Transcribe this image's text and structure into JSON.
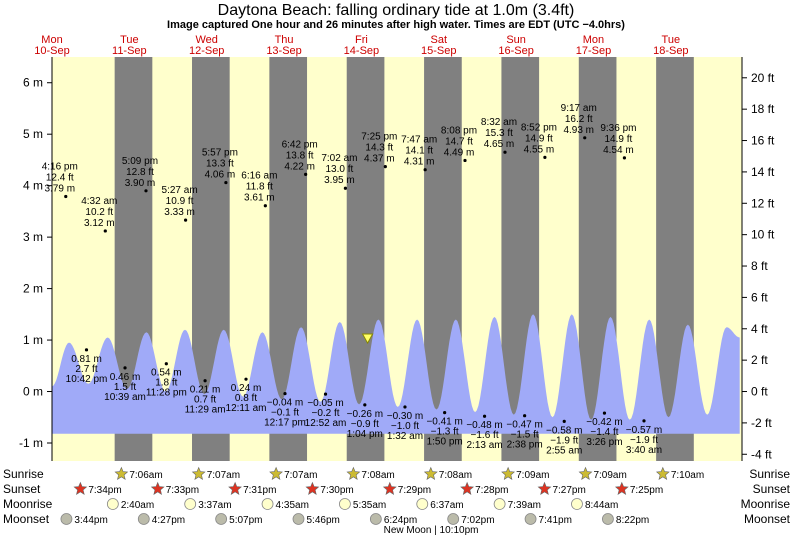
{
  "title": "Daytona Beach: falling  ordinary tide at 1.0m (3.4ft)",
  "subtitle": "Image captured One hour and 26 minutes after high water. Times are EDT (UTC −4.0hrs)",
  "colors": {
    "day": "#ffffcc",
    "night": "#808080",
    "tide_fill": "#a0aaf8",
    "day_label": "#cc0000",
    "now_marker": "#ffff66"
  },
  "day_headers": [
    {
      "dow": "Mon",
      "date": "10-Sep"
    },
    {
      "dow": "Tue",
      "date": "11-Sep"
    },
    {
      "dow": "Wed",
      "date": "12-Sep"
    },
    {
      "dow": "Thu",
      "date": "13-Sep"
    },
    {
      "dow": "Fri",
      "date": "14-Sep"
    },
    {
      "dow": "Sat",
      "date": "15-Sep"
    },
    {
      "dow": "Sun",
      "date": "16-Sep"
    },
    {
      "dow": "Mon",
      "date": "17-Sep"
    },
    {
      "dow": "Tue",
      "date": "18-Sep"
    }
  ],
  "chart_data": {
    "type": "area",
    "title": "Daytona Beach: falling  ordinary tide at 1.0m (3.4ft)",
    "y_left_unit": "m",
    "y_left_ticks": [
      "-1 m",
      "0 m",
      "1 m",
      "2 m",
      "3 m",
      "4 m",
      "5 m",
      "6 m"
    ],
    "y_left_range": [
      -1.35,
      6.5
    ],
    "y_right_unit": "ft",
    "y_right_ticks": [
      "-4 ft",
      "-2 ft",
      "0 ft",
      "2 ft",
      "4 ft",
      "6 ft",
      "8 ft",
      "10 ft",
      "12 ft",
      "14 ft",
      "16 ft",
      "18 ft",
      "20 ft"
    ],
    "x_range_days": [
      10.0,
      18.92
    ],
    "grid": false,
    "now": {
      "day": 14.08,
      "height_m": 1.0
    },
    "extrema": [
      {
        "type": "high",
        "day": 10.178,
        "time": "4:16 pm",
        "ft": "12.4 ft",
        "m": "3.79 m",
        "value": 3.79
      },
      {
        "type": "low",
        "day": 10.446,
        "time": "10:42 pm",
        "ft": "2.7 ft",
        "m": "0.81 m",
        "value": 0.81
      },
      {
        "type": "high",
        "day": 10.689,
        "time": "4:32 am",
        "ft": "10.2 ft",
        "m": "3.12 m",
        "value": 3.12
      },
      {
        "type": "low",
        "day": 10.944,
        "time": "10:39 am",
        "ft": "1.5 ft",
        "m": "0.46 m",
        "value": 0.46
      },
      {
        "type": "high",
        "day": 11.215,
        "time": "5:09 pm",
        "ft": "12.8 ft",
        "m": "3.90 m",
        "value": 3.9
      },
      {
        "type": "low",
        "day": 11.478,
        "time": "11:28 pm",
        "ft": "1.8 ft",
        "m": "0.54 m",
        "value": 0.54
      },
      {
        "type": "high",
        "day": 11.727,
        "time": "5:27 am",
        "ft": "10.9 ft",
        "m": "3.33 m",
        "value": 3.33
      },
      {
        "type": "low",
        "day": 11.979,
        "time": "11:29 am",
        "ft": "0.7 ft",
        "m": "0.21 m",
        "value": 0.21
      },
      {
        "type": "high",
        "day": 12.248,
        "time": "5:57 pm",
        "ft": "13.3 ft",
        "m": "4.06 m",
        "value": 4.06
      },
      {
        "type": "low",
        "day": 12.508,
        "time": "12:11 am",
        "ft": "0.8 ft",
        "m": "0.24 m",
        "value": 0.24
      },
      {
        "type": "high",
        "day": 12.758,
        "time": "6:16 am",
        "ft": "11.8 ft",
        "m": "3.61 m",
        "value": 3.61
      },
      {
        "type": "low",
        "day": 13.012,
        "time": "12:17 pm",
        "ft": "−0.1 ft",
        "m": "−0.04 m",
        "value": -0.04
      },
      {
        "type": "high",
        "day": 13.279,
        "time": "6:42 pm",
        "ft": "13.8 ft",
        "m": "4.22 m",
        "value": 4.22
      },
      {
        "type": "low",
        "day": 13.536,
        "time": "12:52 am",
        "ft": "−0.2 ft",
        "m": "−0.05 m",
        "value": -0.05
      },
      {
        "type": "high",
        "day": 13.793,
        "time": "7:02 am",
        "ft": "13.0 ft",
        "m": "3.95 m",
        "value": 3.95
      },
      {
        "type": "low",
        "day": 14.044,
        "time": "1:04 pm",
        "ft": "−0.9 ft",
        "m": "−0.26 m",
        "value": -0.26
      },
      {
        "type": "high",
        "day": 14.309,
        "time": "7:25 pm",
        "ft": "14.3 ft",
        "m": "4.37 m",
        "value": 4.37
      },
      {
        "type": "low",
        "day": 14.563,
        "time": "1:32 am",
        "ft": "−1.0 ft",
        "m": "−0.30 m",
        "value": -0.3
      },
      {
        "type": "high",
        "day": 14.824,
        "time": "7:47 am",
        "ft": "14.1 ft",
        "m": "4.31 m",
        "value": 4.31
      },
      {
        "type": "low",
        "day": 15.076,
        "time": "1:50 pm",
        "ft": "−1.3 ft",
        "m": "−0.41 m",
        "value": -0.41
      },
      {
        "type": "high",
        "day": 15.339,
        "time": "8:08 pm",
        "ft": "14.7 ft",
        "m": "4.49 m",
        "value": 4.49
      },
      {
        "type": "low",
        "day": 15.592,
        "time": "2:13 am",
        "ft": "−1.6 ft",
        "m": "−0.48 m",
        "value": -0.48
      },
      {
        "type": "high",
        "day": 15.856,
        "time": "8:32 am",
        "ft": "15.3 ft",
        "m": "4.65 m",
        "value": 4.65
      },
      {
        "type": "low",
        "day": 16.11,
        "time": "2:38 pm",
        "ft": "−1.5 ft",
        "m": "−0.47 m",
        "value": -0.47
      },
      {
        "type": "high",
        "day": 16.372,
        "time": "8:52 pm",
        "ft": "14.9 ft",
        "m": "4.55 m",
        "value": 4.55
      },
      {
        "type": "low",
        "day": 16.622,
        "time": "2:55 am",
        "ft": "−1.9 ft",
        "m": "−0.58 m",
        "value": -0.58
      },
      {
        "type": "high",
        "day": 16.887,
        "time": "9:17 am",
        "ft": "16.2 ft",
        "m": "4.93 m",
        "value": 4.93
      },
      {
        "type": "low",
        "day": 17.142,
        "time": "3:26 pm",
        "ft": "−1.4 ft",
        "m": "−0.42 m",
        "value": -0.42
      },
      {
        "type": "high",
        "day": 17.4,
        "time": "9:36 pm",
        "ft": "14.9 ft",
        "m": "4.54 m",
        "value": 4.54
      },
      {
        "type": "low",
        "day": 17.653,
        "time": "3:40 am",
        "ft": "−1.9 ft",
        "m": "−0.57 m",
        "value": -0.57
      }
    ],
    "curve": {
      "x": [
        10.0,
        10.22,
        10.47,
        10.72,
        10.97,
        11.22,
        11.47,
        11.72,
        11.97,
        12.22,
        12.47,
        12.72,
        12.97,
        13.22,
        13.47,
        13.72,
        13.97,
        14.22,
        14.47,
        14.72,
        14.97,
        15.22,
        15.47,
        15.72,
        15.97,
        16.22,
        16.47,
        16.72,
        16.97,
        17.22,
        17.47,
        17.72,
        17.97,
        18.22,
        18.47,
        18.72,
        18.89
      ],
      "y": [
        0.1,
        0.95,
        0.15,
        1.05,
        0.05,
        1.15,
        0.0,
        1.2,
        -0.05,
        1.2,
        -0.1,
        1.15,
        -0.15,
        1.25,
        -0.2,
        1.35,
        -0.25,
        1.4,
        -0.3,
        1.4,
        -0.35,
        1.4,
        -0.4,
        1.45,
        -0.45,
        1.5,
        -0.5,
        1.5,
        -0.55,
        1.45,
        -0.55,
        1.4,
        -0.5,
        1.3,
        -0.45,
        1.25,
        1.05
      ]
    }
  },
  "sun_moon": {
    "row_labels": {
      "sunrise": "Sunrise",
      "sunset": "Sunset",
      "moonrise": "Moonrise",
      "moonset": "Moonset"
    },
    "sunrise": [
      {
        "day": 11.0,
        "time": "7:06am"
      },
      {
        "day": 12.0,
        "time": "7:07am"
      },
      {
        "day": 13.0,
        "time": "7:07am"
      },
      {
        "day": 14.0,
        "time": "7:08am"
      },
      {
        "day": 15.0,
        "time": "7:08am"
      },
      {
        "day": 16.0,
        "time": "7:09am"
      },
      {
        "day": 17.0,
        "time": "7:09am"
      },
      {
        "day": 18.0,
        "time": "7:10am"
      }
    ],
    "sunset": [
      {
        "day": 10.47,
        "time": "7:34pm"
      },
      {
        "day": 11.47,
        "time": "7:33pm"
      },
      {
        "day": 12.47,
        "time": "7:31pm"
      },
      {
        "day": 13.47,
        "time": "7:30pm"
      },
      {
        "day": 14.47,
        "time": "7:29pm"
      },
      {
        "day": 15.47,
        "time": "7:28pm"
      },
      {
        "day": 16.47,
        "time": "7:27pm"
      },
      {
        "day": 17.47,
        "time": "7:25pm"
      }
    ],
    "moonrise": [
      {
        "day": 10.89,
        "time": "2:40am"
      },
      {
        "day": 11.89,
        "time": "3:37am"
      },
      {
        "day": 12.89,
        "time": "4:35am"
      },
      {
        "day": 13.89,
        "time": "5:35am"
      },
      {
        "day": 14.89,
        "time": "6:37am"
      },
      {
        "day": 15.89,
        "time": "7:39am"
      },
      {
        "day": 16.89,
        "time": "8:44am"
      }
    ],
    "moonset": [
      {
        "day": 10.29,
        "time": "3:44pm"
      },
      {
        "day": 11.29,
        "time": "4:27pm"
      },
      {
        "day": 12.29,
        "time": "5:07pm"
      },
      {
        "day": 13.29,
        "time": "5:46pm"
      },
      {
        "day": 14.29,
        "time": "6:24pm"
      },
      {
        "day": 15.29,
        "time": "7:02pm"
      },
      {
        "day": 16.29,
        "time": "7:41pm"
      },
      {
        "day": 17.29,
        "time": "8:22pm"
      }
    ],
    "new_moon_label": "New Moon | 10:10pm",
    "new_moon_day": 14.9
  }
}
